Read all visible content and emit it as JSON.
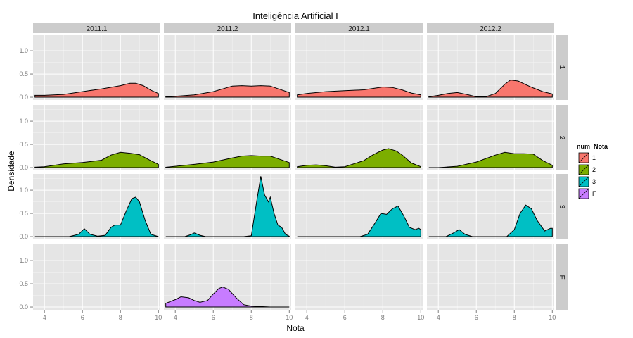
{
  "chart_data": {
    "type": "area",
    "title": "Inteligência Artificial I",
    "xlabel": "Nota",
    "ylabel": "Densidade",
    "xlim": [
      3.4,
      10.1
    ],
    "ylim": [
      -0.06,
      1.35
    ],
    "x_ticks": [
      4,
      6,
      8,
      10
    ],
    "y_ticks": [
      0.0,
      0.5,
      1.0
    ],
    "y_tick_labels": [
      "0.0",
      "0.5",
      "1.0"
    ],
    "grid": true,
    "legend": {
      "title": "num_Nota",
      "placement": "right",
      "entries": [
        {
          "label": "1",
          "color": "#F8766D"
        },
        {
          "label": "2",
          "color": "#7CAE00"
        },
        {
          "label": "3",
          "color": "#00BFC4"
        },
        {
          "label": "F",
          "color": "#C77CFF"
        }
      ]
    },
    "column_facets": [
      "2011.1",
      "2011.2",
      "2012.1",
      "2012.2"
    ],
    "row_facets": [
      "1",
      "2",
      "3",
      "F"
    ],
    "panels": [
      {
        "row": "1",
        "col": "2011.1",
        "color": "#F8766D",
        "x": [
          3.5,
          4,
          5,
          6,
          7,
          8,
          8.5,
          8.8,
          9.2,
          9.6,
          10
        ],
        "y": [
          0.04,
          0.04,
          0.06,
          0.12,
          0.18,
          0.25,
          0.3,
          0.3,
          0.25,
          0.15,
          0.08
        ]
      },
      {
        "row": "1",
        "col": "2011.2",
        "color": "#F8766D",
        "x": [
          3.5,
          4,
          5,
          6,
          6.5,
          7,
          7.5,
          8,
          8.5,
          9,
          9.5,
          10
        ],
        "y": [
          0.01,
          0.02,
          0.05,
          0.12,
          0.18,
          0.24,
          0.25,
          0.24,
          0.25,
          0.24,
          0.17,
          0.1
        ]
      },
      {
        "row": "1",
        "col": "2012.1",
        "color": "#F8766D",
        "x": [
          3.5,
          4,
          5,
          6,
          7,
          7.5,
          8,
          8.5,
          9,
          9.5,
          10
        ],
        "y": [
          0.05,
          0.08,
          0.12,
          0.14,
          0.16,
          0.19,
          0.22,
          0.21,
          0.16,
          0.09,
          0.05
        ]
      },
      {
        "row": "1",
        "col": "2012.2",
        "color": "#F8766D",
        "x": [
          3.5,
          4,
          4.5,
          5,
          5.5,
          6,
          6.5,
          7,
          7.5,
          7.8,
          8.2,
          8.6,
          9,
          9.5,
          10
        ],
        "y": [
          0.01,
          0.04,
          0.08,
          0.1,
          0.06,
          0.01,
          0.01,
          0.08,
          0.28,
          0.37,
          0.35,
          0.27,
          0.2,
          0.12,
          0.07
        ]
      },
      {
        "row": "2",
        "col": "2011.1",
        "color": "#7CAE00",
        "x": [
          3.5,
          4,
          5,
          6,
          7,
          7.5,
          8,
          8.5,
          9,
          9.5,
          10
        ],
        "y": [
          0.01,
          0.02,
          0.08,
          0.11,
          0.16,
          0.27,
          0.33,
          0.31,
          0.28,
          0.17,
          0.07
        ]
      },
      {
        "row": "2",
        "col": "2011.2",
        "color": "#7CAE00",
        "x": [
          3.5,
          4,
          5,
          6,
          7,
          7.5,
          8,
          8.5,
          9,
          9.5,
          10
        ],
        "y": [
          0.01,
          0.03,
          0.07,
          0.12,
          0.21,
          0.25,
          0.26,
          0.25,
          0.25,
          0.18,
          0.11
        ]
      },
      {
        "row": "2",
        "col": "2012.1",
        "color": "#7CAE00",
        "x": [
          3.5,
          4,
          4.5,
          5,
          5.5,
          6,
          7,
          7.5,
          8,
          8.3,
          8.7,
          9,
          9.5,
          10
        ],
        "y": [
          0.02,
          0.05,
          0.06,
          0.04,
          0.01,
          0.02,
          0.15,
          0.28,
          0.38,
          0.41,
          0.36,
          0.28,
          0.1,
          0.02
        ]
      },
      {
        "row": "2",
        "col": "2012.2",
        "color": "#7CAE00",
        "x": [
          3.5,
          4,
          5,
          6,
          7,
          7.5,
          8,
          8.5,
          9,
          9.5,
          10
        ],
        "y": [
          0.0,
          0.0,
          0.03,
          0.12,
          0.27,
          0.33,
          0.3,
          0.3,
          0.29,
          0.15,
          0.05
        ]
      },
      {
        "row": "3",
        "col": "2011.1",
        "color": "#00BFC4",
        "x": [
          3.5,
          5.3,
          5.8,
          6.1,
          6.4,
          6.8,
          7.2,
          7.5,
          7.7,
          8.0,
          8.3,
          8.6,
          8.8,
          9.0,
          9.3,
          9.6,
          10
        ],
        "y": [
          0,
          0,
          0.05,
          0.17,
          0.05,
          0.01,
          0.03,
          0.2,
          0.25,
          0.25,
          0.55,
          0.82,
          0.85,
          0.75,
          0.35,
          0.05,
          0
        ]
      },
      {
        "row": "3",
        "col": "2011.2",
        "color": "#00BFC4",
        "x": [
          3.5,
          4.5,
          4.8,
          5.0,
          5.3,
          5.6,
          7.6,
          8.0,
          8.3,
          8.5,
          8.7,
          8.9,
          9.0,
          9.2,
          9.4,
          9.6,
          9.8,
          10
        ],
        "y": [
          0,
          0,
          0.04,
          0.08,
          0.03,
          0,
          0,
          0.02,
          0.8,
          1.3,
          0.9,
          0.75,
          0.85,
          0.5,
          0.25,
          0.2,
          0.05,
          0.01
        ]
      },
      {
        "row": "3",
        "col": "2012.1",
        "color": "#00BFC4",
        "x": [
          3.5,
          6.8,
          7.2,
          7.6,
          7.9,
          8.2,
          8.5,
          8.8,
          9.1,
          9.4,
          9.7,
          9.9,
          10
        ],
        "y": [
          0,
          0,
          0.05,
          0.3,
          0.5,
          0.48,
          0.6,
          0.66,
          0.45,
          0.2,
          0.15,
          0.18,
          0.15
        ]
      },
      {
        "row": "3",
        "col": "2012.2",
        "color": "#00BFC4",
        "x": [
          3.5,
          4.4,
          4.8,
          5.1,
          5.4,
          5.8,
          7.6,
          8.0,
          8.3,
          8.6,
          8.9,
          9.2,
          9.6,
          9.9,
          10
        ],
        "y": [
          0,
          0,
          0.08,
          0.15,
          0.05,
          0,
          0,
          0.15,
          0.5,
          0.68,
          0.6,
          0.35,
          0.12,
          0.18,
          0.18
        ]
      },
      {
        "row": "F",
        "col": "2011.2",
        "color": "#C77CFF",
        "x": [
          3.5,
          4,
          4.3,
          4.7,
          5,
          5.3,
          5.7,
          6,
          6.3,
          6.5,
          6.8,
          7.2,
          7.6,
          8,
          8.5,
          9,
          10
        ],
        "y": [
          0.08,
          0.16,
          0.22,
          0.2,
          0.14,
          0.1,
          0.14,
          0.28,
          0.4,
          0.43,
          0.38,
          0.2,
          0.05,
          0.02,
          0.01,
          0.0,
          0.0
        ]
      }
    ]
  }
}
